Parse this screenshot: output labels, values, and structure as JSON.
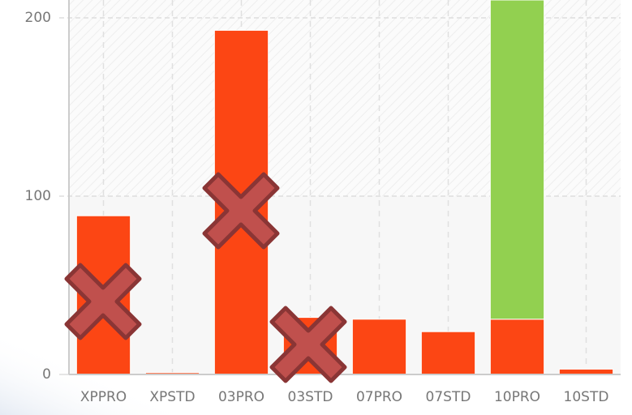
{
  "chart_data": {
    "type": "bar",
    "stacked": true,
    "categories": [
      "XPPRO",
      "XPSTD",
      "03PRO",
      "03STD",
      "07PRO",
      "07STD",
      "10PRO",
      "10STD"
    ],
    "series": [
      {
        "color": "#fc4614",
        "values": [
          89,
          1,
          193,
          32,
          31,
          24,
          31,
          3
        ]
      },
      {
        "color": "#92d050",
        "values": [
          null,
          null,
          null,
          null,
          null,
          null,
          179,
          null
        ]
      }
    ],
    "ylim": [
      0,
      210
    ],
    "yticks": [
      0,
      100,
      200
    ],
    "grid": true
  }
}
